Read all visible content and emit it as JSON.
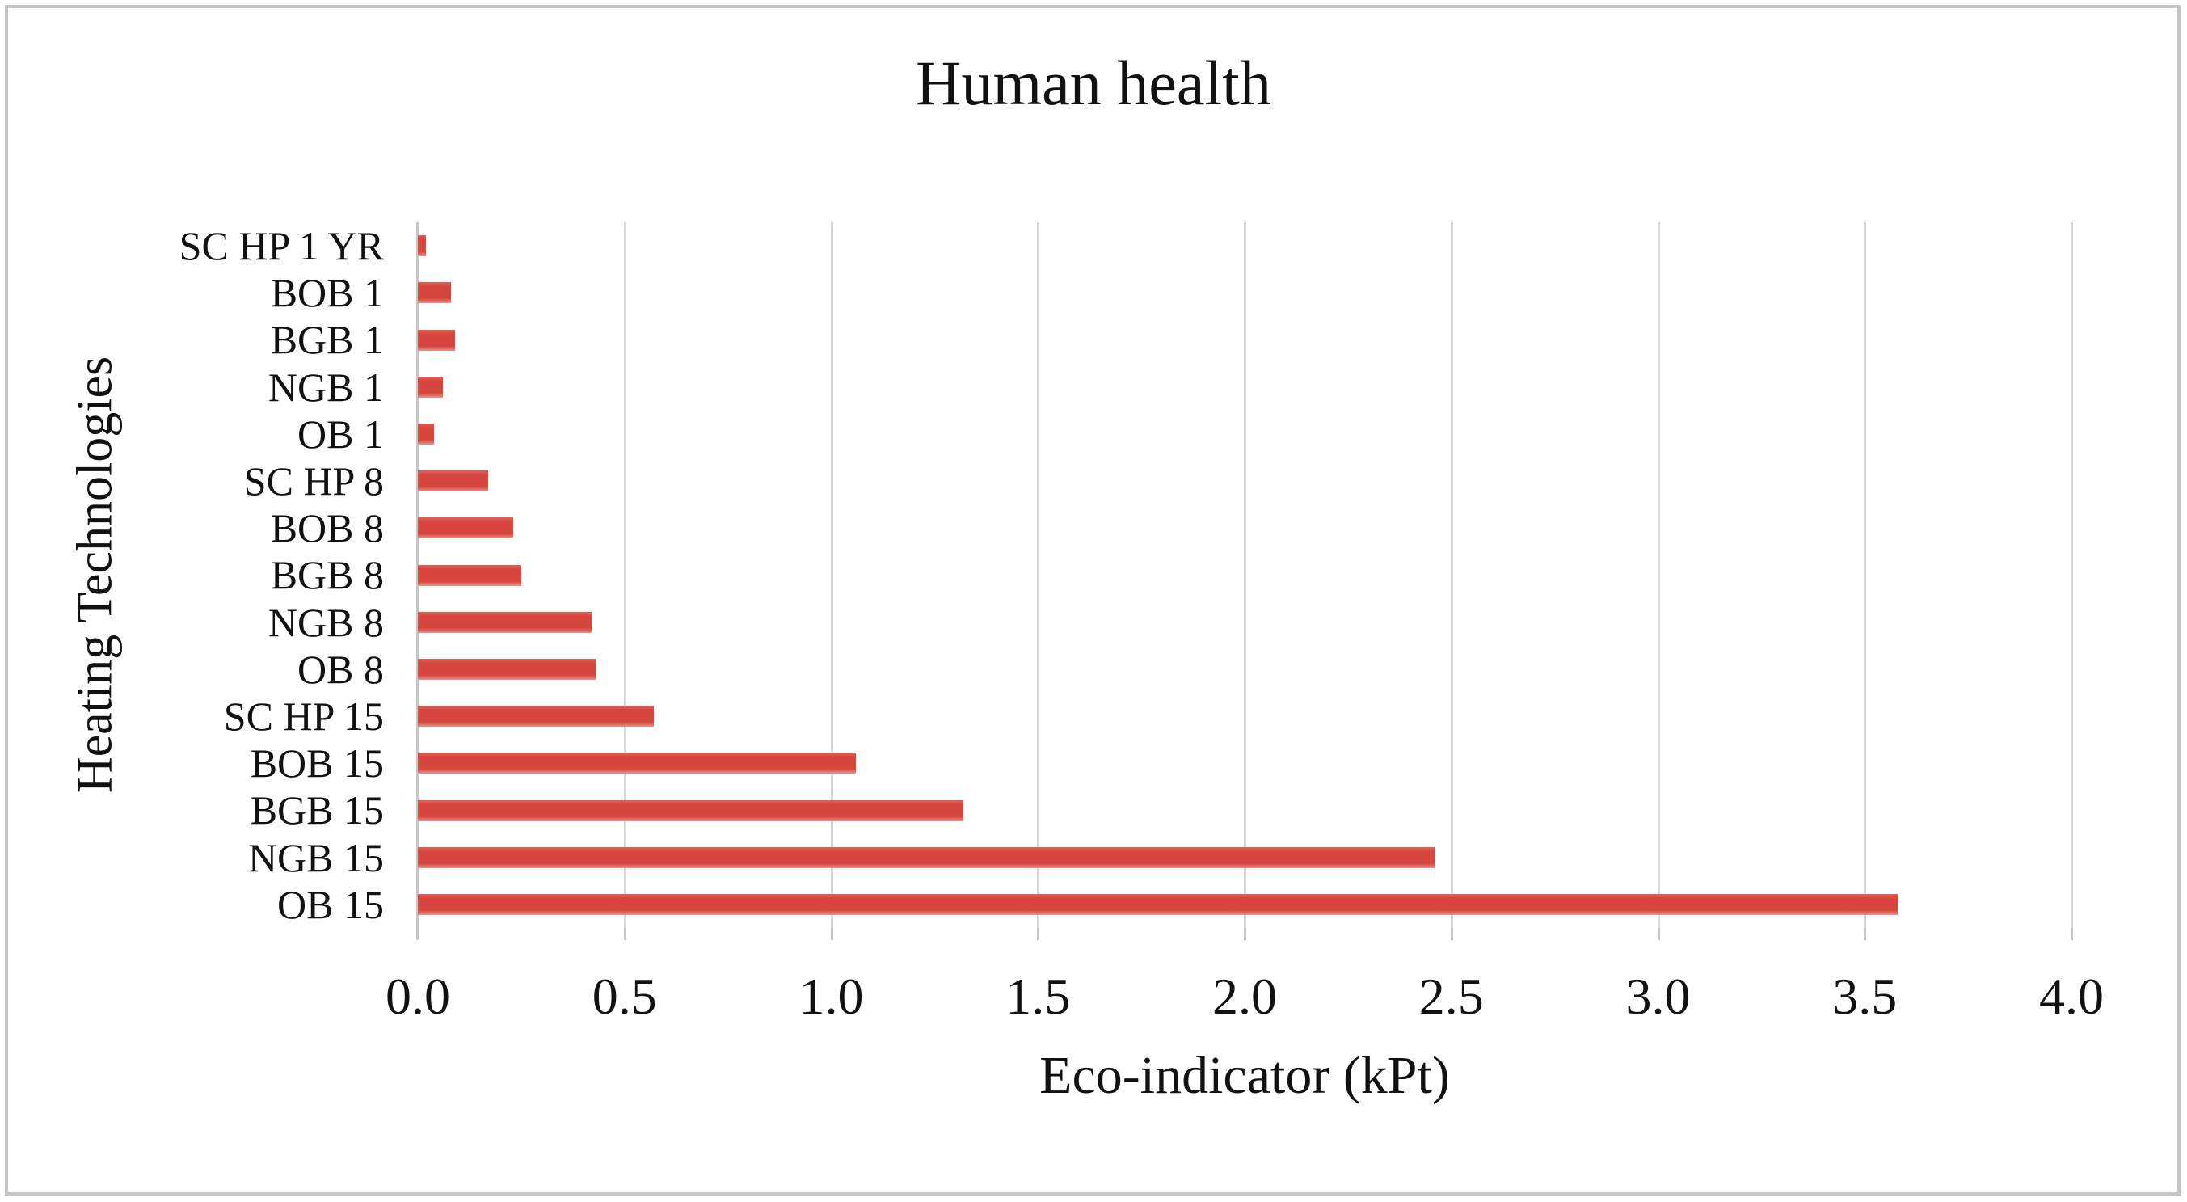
{
  "figure": {
    "title": "Human health",
    "border_color": "#c4c4c4",
    "background": "#ffffff"
  },
  "chart_data": {
    "type": "bar",
    "orientation": "horizontal",
    "title": "Human health",
    "xlabel": "Eco-indicator (kPt)",
    "ylabel": "Heating Technologies",
    "xlim": [
      0.0,
      4.0
    ],
    "x_tick_labels": [
      "0.0",
      "0.5",
      "1.0",
      "1.5",
      "2.0",
      "2.5",
      "3.0",
      "3.5",
      "4.0"
    ],
    "grid": true,
    "legend": "none",
    "bar_color": "#d7463e",
    "bar_edge_highlight": "#e06158",
    "bar_edge_shadow": "#e8948e",
    "gridline_color": "#d8d8d8",
    "axis_line_color": "#c6c6c6",
    "categories_top_to_bottom": [
      "SC HP 1 YR",
      "BOB 1",
      "BGB 1",
      "NGB 1",
      "OB 1",
      "SC HP 8",
      "BOB 8",
      "BGB 8",
      "NGB 8",
      "OB 8",
      "SC HP 15",
      "BOB 15",
      "BGB 15",
      "NGB 15",
      "OB 15"
    ],
    "values": [
      0.02,
      0.08,
      0.09,
      0.06,
      0.04,
      0.17,
      0.23,
      0.25,
      0.42,
      0.43,
      0.57,
      1.06,
      1.32,
      2.46,
      3.58
    ]
  }
}
